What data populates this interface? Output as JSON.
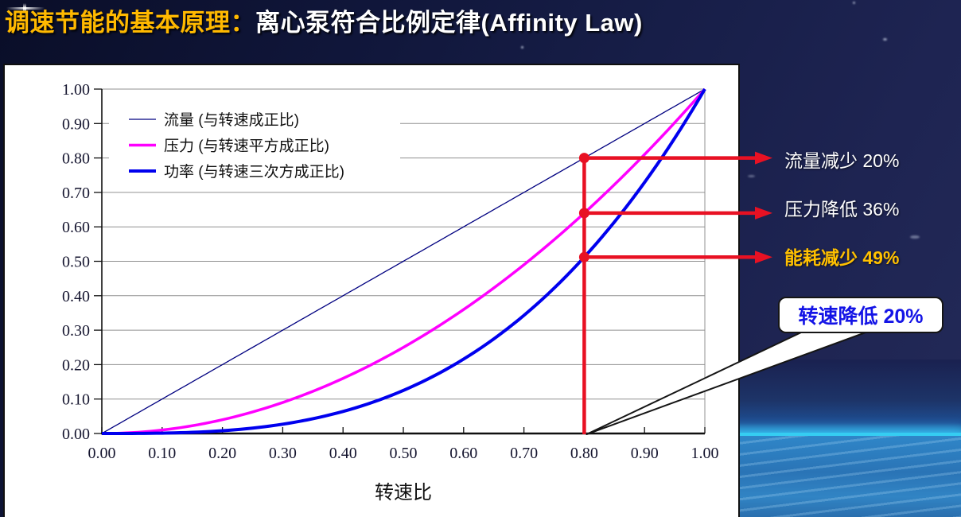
{
  "slide": {
    "title": {
      "highlight": "调速节能的基本原理：",
      "rest": "离心泵符合比例定律(Affinity Law)"
    }
  },
  "chart_data": {
    "type": "line",
    "title": "",
    "xlabel": "转速比",
    "ylabel": "",
    "xlim": [
      0,
      1
    ],
    "ylim": [
      0,
      1
    ],
    "grid": "horizontal-major",
    "legend_position": "top-left-inside",
    "x_tick_labels": [
      "0.00",
      "0.10",
      "0.20",
      "0.30",
      "0.40",
      "0.50",
      "0.60",
      "0.70",
      "0.80",
      "0.90",
      "1.00"
    ],
    "y_tick_labels": [
      "0.00",
      "0.10",
      "0.20",
      "0.30",
      "0.40",
      "0.50",
      "0.60",
      "0.70",
      "0.80",
      "0.90",
      "1.00"
    ],
    "x": [
      0,
      0.1,
      0.2,
      0.3,
      0.4,
      0.5,
      0.6,
      0.7,
      0.8,
      0.9,
      1.0
    ],
    "series": [
      {
        "name": "流量 (与转速成正比)",
        "exponent": 1,
        "color": "#000080",
        "line_width": 1.3,
        "values": [
          0,
          0.1,
          0.2,
          0.3,
          0.4,
          0.5,
          0.6,
          0.7,
          0.8,
          0.9,
          1.0
        ]
      },
      {
        "name": "压力 (与转速平方成正比)",
        "exponent": 2,
        "color": "#ff00ff",
        "line_width": 3.5,
        "values": [
          0,
          0.01,
          0.04,
          0.09,
          0.16,
          0.25,
          0.36,
          0.49,
          0.64,
          0.81,
          1.0
        ]
      },
      {
        "name": "功率 (与转速三次方成正比)",
        "exponent": 3,
        "color": "#0000ee",
        "line_width": 4,
        "values": [
          0,
          0.001,
          0.008,
          0.027,
          0.064,
          0.125,
          0.216,
          0.343,
          0.512,
          0.729,
          1.0
        ]
      }
    ]
  },
  "annotations": {
    "operating_speed_ratio": 0.8,
    "accent_color": "#e81123",
    "rows": [
      {
        "series": "流量",
        "y": 0.8,
        "label": "流量减少 20%",
        "color": "#ffffff"
      },
      {
        "series": "压力",
        "y": 0.64,
        "label": "压力降低 36%",
        "color": "#ffffff"
      },
      {
        "series": "功率",
        "y": 0.512,
        "label": "能耗减少 49%",
        "color": "#ffc000"
      }
    ],
    "callout": "转速降低 20%"
  }
}
